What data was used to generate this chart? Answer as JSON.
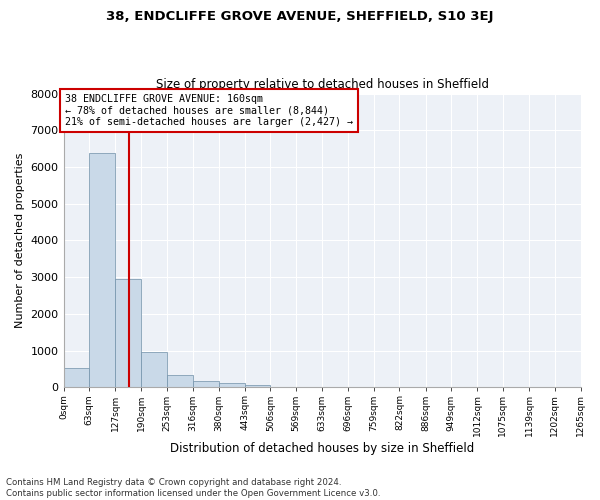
{
  "title": "38, ENDCLIFFE GROVE AVENUE, SHEFFIELD, S10 3EJ",
  "subtitle": "Size of property relative to detached houses in Sheffield",
  "xlabel": "Distribution of detached houses by size in Sheffield",
  "ylabel": "Number of detached properties",
  "footnote1": "Contains HM Land Registry data © Crown copyright and database right 2024.",
  "footnote2": "Contains public sector information licensed under the Open Government Licence v3.0.",
  "annotation_line1": "38 ENDCLIFFE GROVE AVENUE: 160sqm",
  "annotation_line2": "← 78% of detached houses are smaller (8,844)",
  "annotation_line3": "21% of semi-detached houses are larger (2,427) →",
  "property_size": 160,
  "bar_color": "#c9d9e8",
  "bar_edge_color": "#7090a8",
  "vline_color": "#cc0000",
  "background_color": "#edf1f7",
  "grid_color": "#ffffff",
  "bins": [
    0,
    63,
    127,
    190,
    253,
    316,
    380,
    443,
    506,
    569,
    633,
    696,
    759,
    822,
    886,
    949,
    1012,
    1075,
    1139,
    1202,
    1265
  ],
  "bin_labels": [
    "0sqm",
    "63sqm",
    "127sqm",
    "190sqm",
    "253sqm",
    "316sqm",
    "380sqm",
    "443sqm",
    "506sqm",
    "569sqm",
    "633sqm",
    "696sqm",
    "759sqm",
    "822sqm",
    "886sqm",
    "949sqm",
    "1012sqm",
    "1075sqm",
    "1139sqm",
    "1202sqm",
    "1265sqm"
  ],
  "counts": [
    530,
    6380,
    2960,
    950,
    340,
    165,
    110,
    60,
    0,
    0,
    0,
    0,
    0,
    0,
    0,
    0,
    0,
    0,
    0,
    0
  ],
  "ylim": [
    0,
    8000
  ],
  "yticks": [
    0,
    1000,
    2000,
    3000,
    4000,
    5000,
    6000,
    7000,
    8000
  ]
}
